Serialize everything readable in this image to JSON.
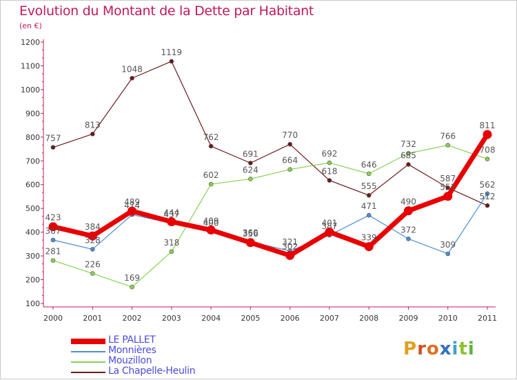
{
  "title": "Evolution du Montant de la Dette par Habitant",
  "unit": "(en €)",
  "logo_text": "Proxiti",
  "chart_data": {
    "type": "line",
    "title": "Evolution du Montant de la Dette par Habitant",
    "ylabel": "(en €)",
    "ylim": [
      100,
      1200
    ],
    "yticks": [
      100,
      200,
      300,
      400,
      500,
      600,
      700,
      800,
      900,
      1000,
      1100,
      1200
    ],
    "grid": false,
    "legend_position": "bottom-left",
    "x": [
      "2000",
      "2001",
      "2002",
      "2003",
      "2004",
      "2005",
      "2006",
      "2007",
      "2008",
      "2009",
      "2010",
      "2011"
    ],
    "series": [
      {
        "name": "LE PALLET",
        "color": "#e80000",
        "values": [
          423,
          384,
          489,
          444,
          409,
          356,
          302,
          401,
          339,
          490,
          551,
          811
        ]
      },
      {
        "name": "Monnières",
        "color": "#4a8ed0",
        "values": [
          367,
          328,
          474,
          437,
          400,
          360,
          321,
          387,
          471,
          372,
          309,
          562
        ]
      },
      {
        "name": "Mouzillon",
        "color": "#88d050",
        "values": [
          281,
          226,
          169,
          318,
          602,
          624,
          664,
          692,
          646,
          732,
          766,
          708
        ]
      },
      {
        "name": "La Chapelle-Heulin",
        "color": "#6b1a1a",
        "values": [
          757,
          813,
          1048,
          1119,
          762,
          691,
          770,
          618,
          555,
          685,
          587,
          512
        ]
      }
    ]
  }
}
